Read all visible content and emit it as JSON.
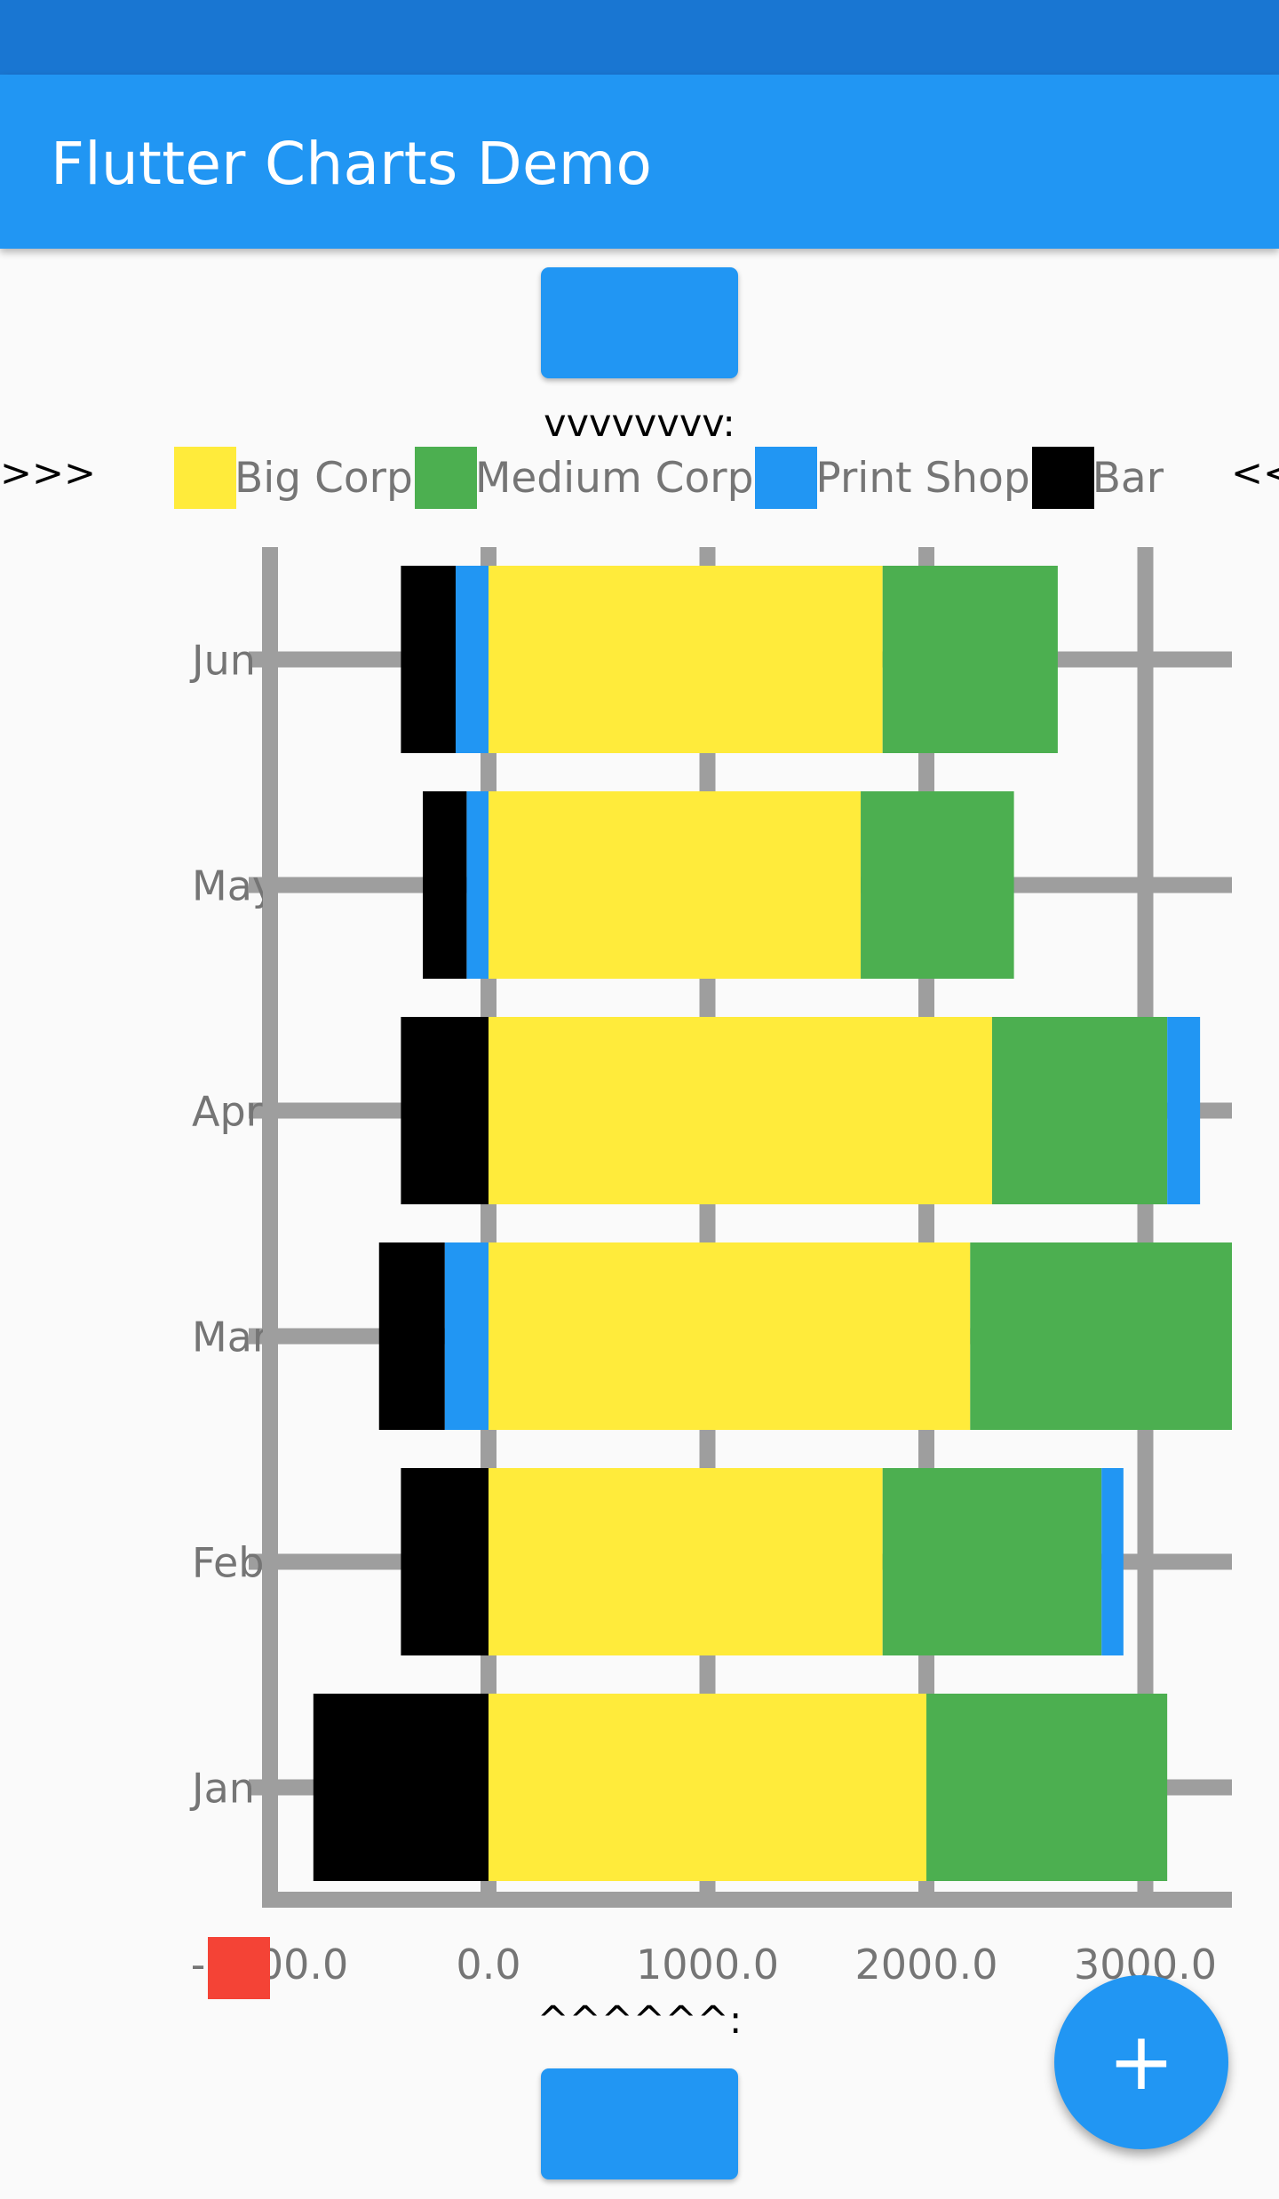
{
  "app": {
    "title": "Flutter Charts Demo"
  },
  "markers": {
    "top": "vvvvvvvv:",
    "bottom": "^^^^^^:",
    "left": ">>>",
    "right": "<<"
  },
  "fab": {
    "icon": "add-icon",
    "glyph": "+"
  },
  "colors": {
    "status_bar": "#1976d2",
    "primary": "#2196f3",
    "grid": "#9e9e9e",
    "axis_label": "#757575",
    "red_box": "#f44336"
  },
  "legend": [
    {
      "label": "Big Corp",
      "color": "#ffeb3b"
    },
    {
      "label": "Medium Corp",
      "color": "#4caf50"
    },
    {
      "label": "Print Shop",
      "color": "#2196f3"
    },
    {
      "label": "Bar",
      "color": "#000000"
    }
  ],
  "chart_data": {
    "type": "bar",
    "orientation": "horizontal",
    "stacked": true,
    "title": "",
    "xlabel": "",
    "ylabel": "",
    "categories": [
      "Jun",
      "May",
      "Apr",
      "Mar",
      "Feb",
      "Jan"
    ],
    "x_ticks": [
      -1000,
      0,
      1000,
      2000,
      3000
    ],
    "x_tick_labels": [
      "-1000.0",
      "0.0",
      "1000.0",
      "2000.0",
      "3000.0"
    ],
    "xlim": [
      -1000,
      3400
    ],
    "grid": true,
    "series": [
      {
        "name": "Big Corp",
        "color": "#ffeb3b",
        "values": [
          1800,
          1700,
          2300,
          2200,
          1800,
          2000
        ]
      },
      {
        "name": "Medium Corp",
        "color": "#4caf50",
        "values": [
          800,
          700,
          800,
          1200,
          1000,
          1100
        ]
      },
      {
        "name": "Print Shop",
        "color": "#2196f3",
        "values": [
          -150,
          -100,
          150,
          -200,
          100,
          0
        ]
      },
      {
        "name": "Bar",
        "color": "#000000",
        "values": [
          -250,
          -200,
          -400,
          -300,
          -400,
          -800
        ]
      }
    ]
  }
}
